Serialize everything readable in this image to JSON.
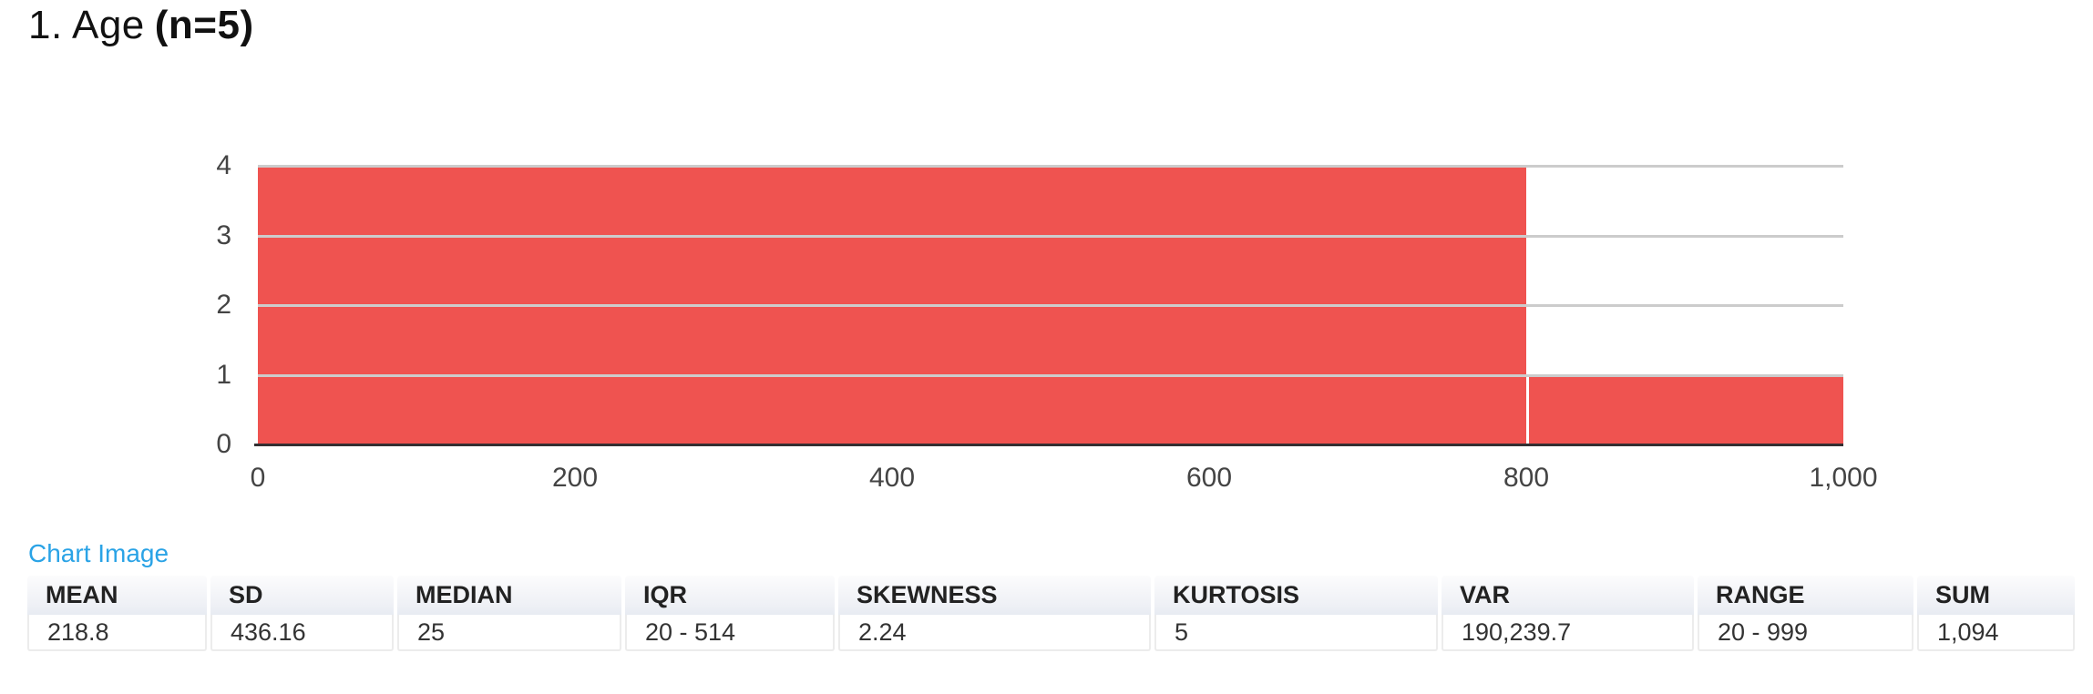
{
  "header": {
    "title_prefix": "1. Age",
    "title_n": "(n=5)"
  },
  "chart_link": {
    "label": "Chart Image",
    "color": "#2aa3e6"
  },
  "chart_data": {
    "type": "bar",
    "subtype": "histogram",
    "title": "",
    "xlabel": "",
    "ylabel": "",
    "xlim": [
      0,
      1000
    ],
    "ylim": [
      0,
      4
    ],
    "x_tick_values": [
      0,
      200,
      400,
      600,
      800,
      1000
    ],
    "x_tick_labels": [
      "0",
      "200",
      "400",
      "600",
      "800",
      "1,000"
    ],
    "y_tick_values": [
      0,
      1,
      2,
      3,
      4
    ],
    "y_tick_labels": [
      "0",
      "1",
      "2",
      "3",
      "4"
    ],
    "bars": [
      {
        "x_start": 0,
        "x_end": 800,
        "count": 4
      },
      {
        "x_start": 800,
        "x_end": 1000,
        "count": 1
      }
    ],
    "grid": true,
    "legend_position": "none",
    "bar_color": "#ef5350",
    "gridline_color": "#cccccc",
    "axis_line_color": "#332f32",
    "tick_label_color": "#444444"
  },
  "stats_table": {
    "columns": [
      {
        "label": "MEAN",
        "value": "218.8"
      },
      {
        "label": "SD",
        "value": "436.16"
      },
      {
        "label": "MEDIAN",
        "value": "25"
      },
      {
        "label": "IQR",
        "value": "20 - 514"
      },
      {
        "label": "SKEWNESS",
        "value": "2.24"
      },
      {
        "label": "KURTOSIS",
        "value": "5"
      },
      {
        "label": "VAR",
        "value": "190,239.7"
      },
      {
        "label": "RANGE",
        "value": "20 - 999"
      },
      {
        "label": "SUM",
        "value": "1,094"
      }
    ]
  }
}
